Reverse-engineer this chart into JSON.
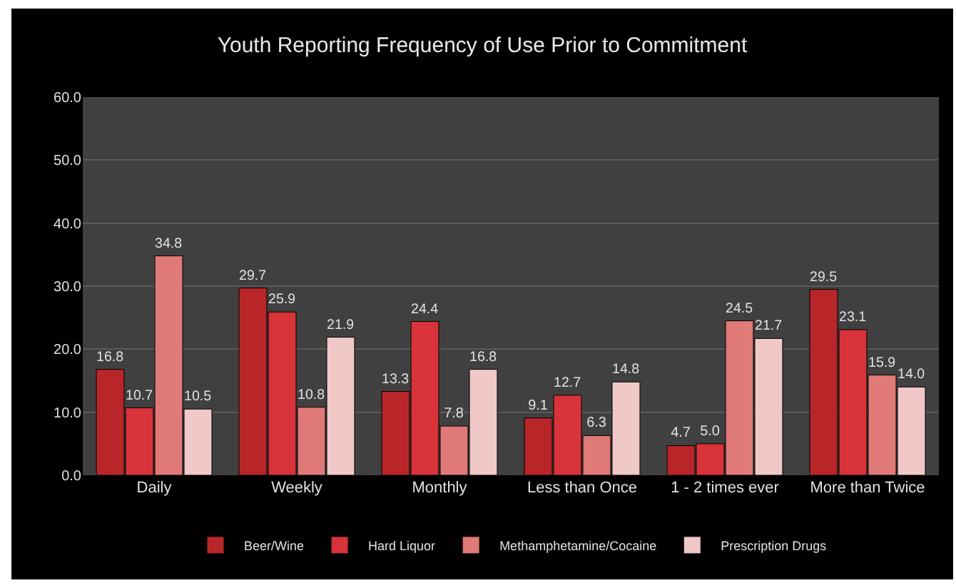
{
  "chart_data": {
    "type": "bar",
    "title": "Youth Reporting Frequency of Use Prior to Commitment",
    "categories": [
      "Daily",
      "Weekly",
      "Monthly",
      "Less than Once",
      "1 - 2 times ever",
      "More than Twice"
    ],
    "series": [
      {
        "name": "Beer/Wine",
        "color": "#b8262a",
        "values": [
          16.8,
          29.7,
          13.3,
          9.1,
          4.7,
          29.5
        ],
        "value_labels": [
          "16.8",
          "29.7",
          "13.3",
          "9.1",
          "4.7",
          "29.5"
        ]
      },
      {
        "name": "Hard Liquor",
        "color": "#d8333a",
        "values": [
          10.7,
          25.9,
          24.4,
          12.7,
          5,
          23.1
        ],
        "value_labels": [
          "10.7",
          "25.9",
          "24.4",
          "12.7",
          "5.0",
          "23.1"
        ]
      },
      {
        "name": "Methamphetamine/Cocaine",
        "color": "#e07a78",
        "values": [
          34.8,
          10.8,
          7.8,
          6.3,
          24.5,
          15.9
        ],
        "value_labels": [
          "34.8",
          "10.8",
          "7.8",
          "6.3",
          "24.5",
          "15.9"
        ]
      },
      {
        "name": "Prescription Drugs",
        "color": "#f0c8c8",
        "values": [
          10.5,
          21.9,
          16.8,
          14.8,
          21.7,
          14
        ],
        "value_labels": [
          "10.5",
          "21.9",
          "16.8",
          "14.8",
          "21.7",
          "14.0"
        ]
      }
    ],
    "ylim": [
      0,
      60
    ],
    "yticks": [
      {
        "value": 0,
        "label": "0.0"
      },
      {
        "value": 10,
        "label": "10.0"
      },
      {
        "value": 20,
        "label": "20.0"
      },
      {
        "value": 30,
        "label": "30.0"
      },
      {
        "value": 40,
        "label": "40.0"
      },
      {
        "value": 50,
        "label": "50.0"
      },
      {
        "value": 60,
        "label": "60.0"
      }
    ],
    "grid": "y",
    "legend": "bottom"
  }
}
